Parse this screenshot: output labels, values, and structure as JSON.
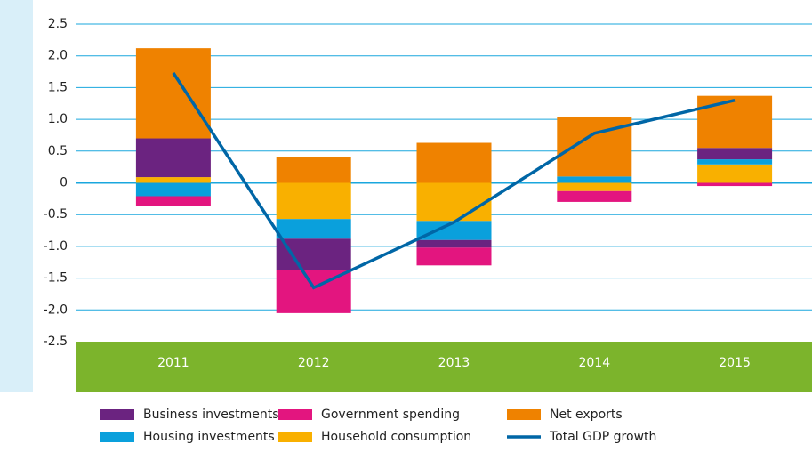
{
  "chart_data": {
    "type": "stacked_bar_line",
    "categories": [
      "2011",
      "2012",
      "2013",
      "2014",
      "2015"
    ],
    "series": [
      {
        "name": "Household consumption",
        "color": "#f9b000",
        "values": [
          0.09,
          -0.57,
          -0.6,
          -0.13,
          0.29
        ]
      },
      {
        "name": "Housing investments",
        "color": "#0aa0dc",
        "values": [
          -0.21,
          -0.31,
          -0.3,
          0.1,
          0.08
        ]
      },
      {
        "name": "Business investments",
        "color": "#6b2380",
        "values": [
          0.61,
          -0.49,
          -0.12,
          0,
          0.18
        ]
      },
      {
        "name": "Government spending",
        "color": "#e3157f",
        "values": [
          -0.16,
          -0.68,
          -0.28,
          -0.17,
          -0.05
        ]
      },
      {
        "name": "Net exports",
        "color": "#ef8200",
        "values": [
          1.42,
          0.4,
          0.63,
          0.93,
          0.82
        ]
      },
      {
        "name": "Total GDP growth",
        "color": "#0066a6",
        "type": "line",
        "values": [
          1.73,
          -1.65,
          -0.62,
          0.78,
          1.3
        ]
      }
    ],
    "ylim": [
      -2.5,
      2.5
    ],
    "yticks": [
      {
        "value": -2.5,
        "label": "-2.5"
      },
      {
        "value": -2.0,
        "label": "-2.0"
      },
      {
        "value": -1.5,
        "label": "-1.5"
      },
      {
        "value": -1.0,
        "label": "-1.0"
      },
      {
        "value": -0.5,
        "label": "-0.5"
      },
      0,
      {
        "value": 0.5,
        "label": "0.5"
      },
      {
        "value": 1.0,
        "label": "1.0"
      },
      {
        "value": 1.5,
        "label": "1.5"
      },
      {
        "value": 2.0,
        "label": "2.0"
      },
      {
        "value": 2.5,
        "label": "2.5"
      }
    ],
    "grid": true
  }
}
